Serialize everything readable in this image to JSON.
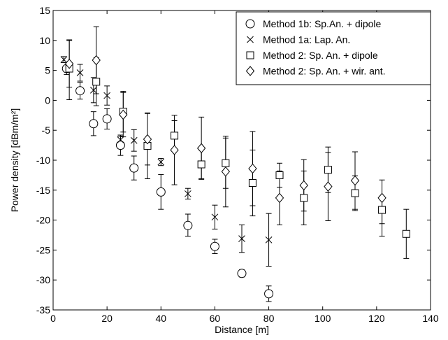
{
  "chart_data": {
    "type": "scatter",
    "xlabel": "Distance [m]",
    "ylabel": "Power density [dBm/m²]",
    "xlim": [
      0,
      140
    ],
    "ylim": [
      -35,
      15
    ],
    "xticks": [
      0,
      20,
      40,
      60,
      80,
      100,
      120,
      140
    ],
    "yticks": [
      -35,
      -30,
      -25,
      -20,
      -15,
      -10,
      -5,
      0,
      5,
      10,
      15
    ],
    "grid": false,
    "legend_position": "top-right",
    "error_bars": true,
    "series": [
      {
        "name": "Method 1b: Sp.An. + dipole",
        "marker": "circle",
        "points": [
          {
            "x": 5,
            "y": 5.3,
            "lo": 4.3,
            "hi": 6.3
          },
          {
            "x": 10,
            "y": 1.6,
            "lo": 0.2,
            "hi": 3.0
          },
          {
            "x": 15,
            "y": -3.9,
            "lo": -5.9,
            "hi": -1.9
          },
          {
            "x": 20,
            "y": -3.1,
            "lo": -4.8,
            "hi": -1.4
          },
          {
            "x": 25,
            "y": -7.5,
            "lo": -9.2,
            "hi": -5.8
          },
          {
            "x": 30,
            "y": -11.3,
            "lo": -13.3,
            "hi": -9.3
          },
          {
            "x": 40,
            "y": -15.3,
            "lo": -18.2,
            "hi": -12.4
          },
          {
            "x": 50,
            "y": -20.9,
            "lo": -22.7,
            "hi": -19.0
          },
          {
            "x": 60,
            "y": -24.4,
            "lo": -25.6,
            "hi": -23.2
          },
          {
            "x": 70,
            "y": -28.9,
            "lo": -29.5,
            "hi": -28.3
          },
          {
            "x": 80,
            "y": -32.3,
            "lo": -33.6,
            "hi": -31.0
          }
        ]
      },
      {
        "name": "Method 1a: Lap. An.",
        "marker": "cross",
        "points": [
          {
            "x": 4,
            "y": 6.8,
            "lo": 6.3,
            "hi": 7.3
          },
          {
            "x": 10,
            "y": 4.6,
            "lo": 3.2,
            "hi": 6.0
          },
          {
            "x": 15,
            "y": 1.7,
            "lo": -0.4,
            "hi": 3.8
          },
          {
            "x": 20,
            "y": 0.8,
            "lo": -0.8,
            "hi": 2.4
          },
          {
            "x": 25,
            "y": -6.6,
            "lo": -7.2,
            "hi": -6.0
          },
          {
            "x": 30,
            "y": -6.7,
            "lo": -8.5,
            "hi": -4.9
          },
          {
            "x": 40,
            "y": -10.3,
            "lo": -10.9,
            "hi": -9.7
          },
          {
            "x": 50,
            "y": -15.6,
            "lo": -16.5,
            "hi": -14.7
          },
          {
            "x": 60,
            "y": -19.5,
            "lo": -21.5,
            "hi": -17.5
          },
          {
            "x": 70,
            "y": -23.1,
            "lo": -25.4,
            "hi": -20.8
          },
          {
            "x": 80,
            "y": -23.3,
            "lo": -27.7,
            "hi": -18.9
          }
        ]
      },
      {
        "name": "Method 2: Sp. An. + dipole",
        "marker": "square",
        "points": [
          {
            "x": 6,
            "y": 5.3,
            "lo": 0.1,
            "hi": 10.1
          },
          {
            "x": 16,
            "y": 3.1,
            "lo": -0.9,
            "hi": 7.1
          },
          {
            "x": 26,
            "y": -1.9,
            "lo": -5.3,
            "hi": 1.5
          },
          {
            "x": 35,
            "y": -7.6,
            "lo": -13.1,
            "hi": -2.1
          },
          {
            "x": 45,
            "y": -5.9,
            "lo": -8.4,
            "hi": -3.4
          },
          {
            "x": 55,
            "y": -10.7,
            "lo": -13.1,
            "hi": -8.3
          },
          {
            "x": 64,
            "y": -10.5,
            "lo": -14.7,
            "hi": -6.3
          },
          {
            "x": 74,
            "y": -13.8,
            "lo": -19.3,
            "hi": -8.3
          },
          {
            "x": 84,
            "y": -12.5,
            "lo": -14.5,
            "hi": -10.5
          },
          {
            "x": 93,
            "y": -16.3,
            "lo": -20.8,
            "hi": -11.8
          },
          {
            "x": 102,
            "y": -11.6,
            "lo": -15.4,
            "hi": -7.8
          },
          {
            "x": 112,
            "y": -15.5,
            "lo": -18.4,
            "hi": -12.6
          },
          {
            "x": 122,
            "y": -18.3,
            "lo": -20.6,
            "hi": -16.0
          },
          {
            "x": 131,
            "y": -22.3,
            "lo": -26.4,
            "hi": -18.2
          }
        ]
      },
      {
        "name": "Method 2: Sp. An. + wir. ant.",
        "marker": "diamond",
        "points": [
          {
            "x": 6,
            "y": 6.1,
            "lo": 2.2,
            "hi": 10.0
          },
          {
            "x": 16,
            "y": 6.7,
            "lo": 1.1,
            "hi": 12.3
          },
          {
            "x": 26,
            "y": -2.4,
            "lo": -6.1,
            "hi": 1.3
          },
          {
            "x": 35,
            "y": -6.5,
            "lo": -10.8,
            "hi": -2.2
          },
          {
            "x": 45,
            "y": -8.3,
            "lo": -14.1,
            "hi": -2.5
          },
          {
            "x": 55,
            "y": -8.0,
            "lo": -13.2,
            "hi": -2.8
          },
          {
            "x": 64,
            "y": -11.9,
            "lo": -17.8,
            "hi": -6.0
          },
          {
            "x": 74,
            "y": -11.4,
            "lo": -17.6,
            "hi": -5.2
          },
          {
            "x": 84,
            "y": -16.3,
            "lo": -20.8,
            "hi": -11.8
          },
          {
            "x": 93,
            "y": -14.2,
            "lo": -18.5,
            "hi": -9.9
          },
          {
            "x": 102,
            "y": -14.4,
            "lo": -20.1,
            "hi": -8.7
          },
          {
            "x": 112,
            "y": -13.4,
            "lo": -18.2,
            "hi": -8.6
          },
          {
            "x": 122,
            "y": -16.3,
            "lo": -22.7,
            "hi": -13.3
          }
        ]
      }
    ]
  }
}
